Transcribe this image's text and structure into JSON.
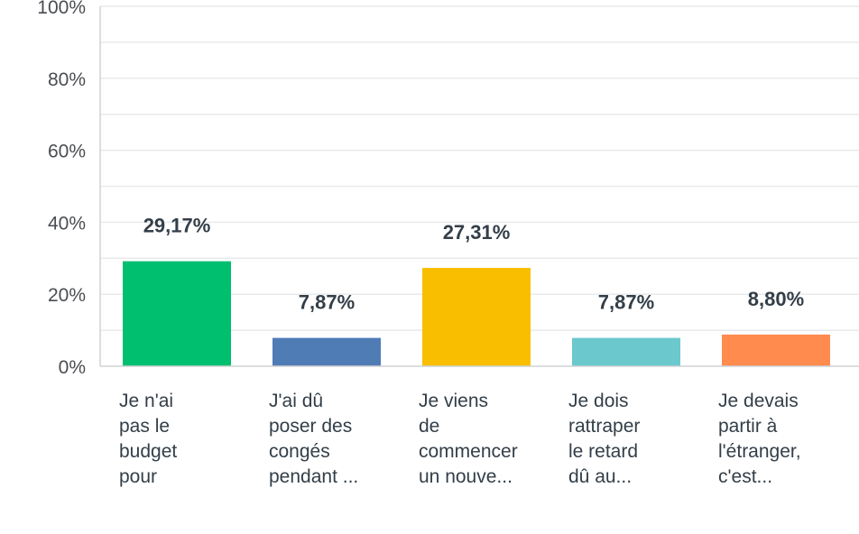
{
  "chart_data": {
    "type": "bar",
    "title": "",
    "xlabel": "",
    "ylabel": "",
    "ylim": [
      0,
      100
    ],
    "grid": true,
    "yticks": [
      "0%",
      "20%",
      "40%",
      "60%",
      "80%",
      "100%"
    ],
    "categories": [
      [
        "Je n'ai",
        "pas le",
        "budget",
        "pour"
      ],
      [
        "J'ai dû",
        "poser des",
        "congés",
        "pendant ..."
      ],
      [
        "Je viens",
        "de",
        "commencer",
        "un nouve..."
      ],
      [
        "Je dois",
        "rattraper",
        "le retard",
        "dû au..."
      ],
      [
        "Je devais",
        "partir à",
        "l'étranger,",
        "c'est..."
      ]
    ],
    "values": [
      29.17,
      7.87,
      27.31,
      7.87,
      8.8
    ],
    "data_labels": [
      "29,17%",
      "7,87%",
      "27,31%",
      "7,87%",
      "8,80%"
    ],
    "colors": [
      "#00bf6f",
      "#507cb6",
      "#f9be00",
      "#6bc8cd",
      "#ff8b4f"
    ]
  }
}
